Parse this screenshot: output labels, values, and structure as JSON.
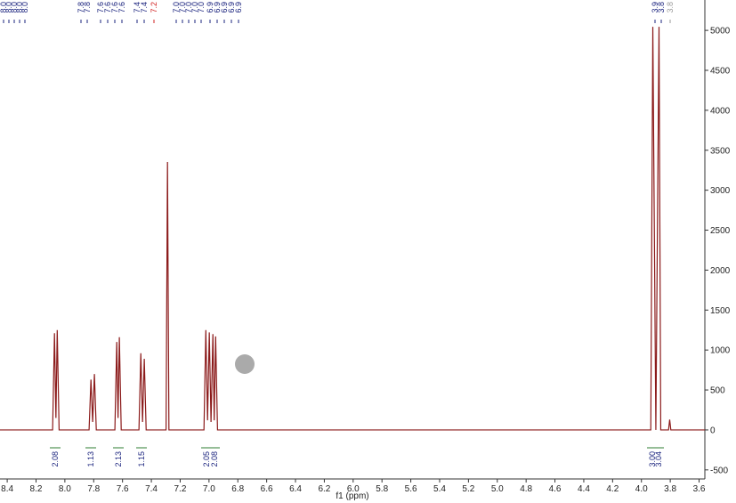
{
  "chart_data": {
    "type": "line",
    "xlabel": "f1 (ppm)",
    "xlim": [
      8.45,
      3.56
    ],
    "xticks": [
      8.4,
      8.2,
      {
        "value": 8.0,
        "label": "8.0"
      },
      7.8,
      7.6,
      7.4,
      7.2,
      {
        "value": 7.0,
        "label": "7.0"
      },
      6.8,
      6.6,
      6.4,
      6.2,
      {
        "value": 6.0,
        "label": "6.0"
      },
      5.8,
      5.6,
      5.4,
      5.2,
      {
        "value": 5.0,
        "label": "5.0"
      },
      4.8,
      4.6,
      4.4,
      4.2,
      {
        "value": 4.0,
        "label": "4.0"
      },
      3.8,
      3.6
    ],
    "ylim": [
      -580,
      5380
    ],
    "yticks": [
      -500,
      0,
      500,
      1000,
      1500,
      2000,
      2500,
      3000,
      3500,
      4000,
      4500,
      5000
    ],
    "x": [
      8.45,
      8.085,
      8.072,
      8.062,
      8.053,
      8.04,
      7.832,
      7.819,
      7.807,
      7.795,
      7.782,
      7.653,
      7.64,
      7.631,
      7.622,
      7.609,
      7.486,
      7.473,
      7.461,
      7.449,
      7.436,
      7.298,
      7.288,
      7.278,
      7.035,
      7.022,
      7.01,
      6.998,
      6.986,
      6.973,
      6.964,
      6.954,
      6.941,
      3.935,
      3.921,
      3.9,
      3.878,
      3.866,
      3.812,
      3.804,
      3.796,
      3.56
    ],
    "series": [
      {
        "color": "#8b1a1a",
        "values": [
          0,
          0,
          1210,
          150,
          1250,
          0,
          0,
          630,
          100,
          700,
          0,
          0,
          1100,
          150,
          1160,
          0,
          0,
          960,
          100,
          890,
          0,
          0,
          3352,
          0,
          0,
          1250,
          120,
          1220,
          100,
          1200,
          120,
          1170,
          0,
          0,
          5045,
          0,
          5045,
          0,
          0,
          130,
          0,
          0
        ]
      }
    ],
    "peak_labels": [
      "8.0",
      "8.0",
      "8.0",
      "8.0",
      "8.0",
      "7.8",
      "7.8",
      "7.6",
      "7.6",
      "7.6",
      "7.6",
      "7.4",
      "7.4",
      "7.2",
      "7.0",
      "7.0",
      "7.0",
      "7.0",
      "7.0",
      "6.9",
      "6.9",
      "6.9",
      "6.9",
      "6.9",
      "3.9",
      "3.8",
      "3.8"
    ],
    "integrals": [
      "2.08",
      "1.13",
      "2.13",
      "1.15",
      "2.05",
      "2.08",
      "3.00",
      "3.04"
    ]
  }
}
